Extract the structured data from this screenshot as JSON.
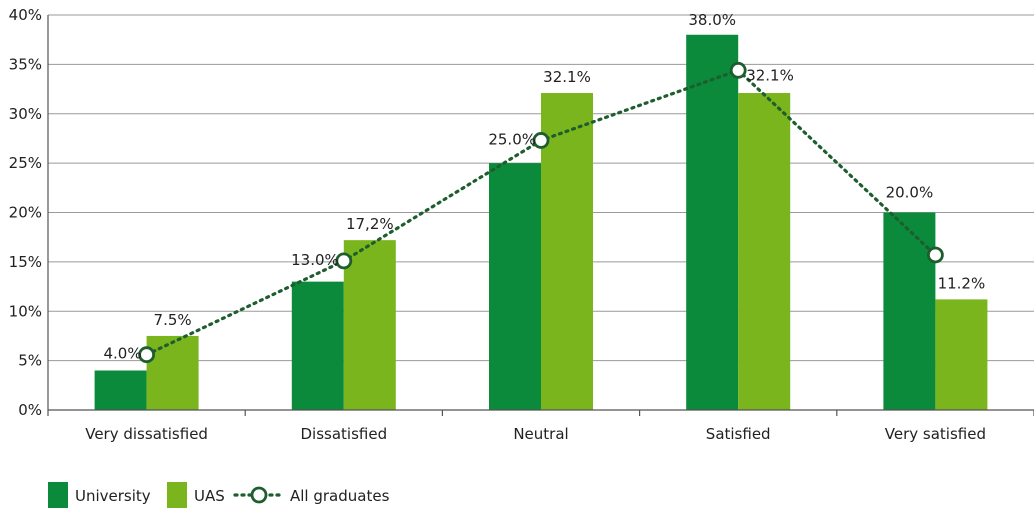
{
  "chart_data": {
    "type": "bar",
    "categories": [
      "Very dissatisfied",
      "Dissatisfied",
      "Neutral",
      "Satisfied",
      "Very satisfied"
    ],
    "series": [
      {
        "name": "University",
        "type": "bar",
        "color": "#0a8a3a",
        "values": [
          4.0,
          13.0,
          25.0,
          38.0,
          20.0
        ],
        "labels": [
          "4.0%",
          "13.0%",
          "25.0%",
          "38.0%",
          "20.0%"
        ]
      },
      {
        "name": "UAS",
        "type": "bar",
        "color": "#7ab51d",
        "values": [
          7.5,
          17.2,
          32.1,
          32.1,
          11.2
        ],
        "labels": [
          "7.5%",
          "17,2%",
          "32.1%",
          "32.1%",
          "11.2%"
        ]
      },
      {
        "name": "All graduates",
        "type": "line",
        "style": "dotted",
        "marker": "open-circle",
        "color": "#1e5e2e",
        "values": [
          5.6,
          15.1,
          27.3,
          34.4,
          15.7
        ]
      }
    ],
    "y_ticks": [
      "0%",
      "5%",
      "10%",
      "15%",
      "20%",
      "25%",
      "30%",
      "35%",
      "40%"
    ],
    "ylim": [
      0,
      40
    ],
    "grid": "horizontal",
    "legend_position": "bottom-left"
  }
}
